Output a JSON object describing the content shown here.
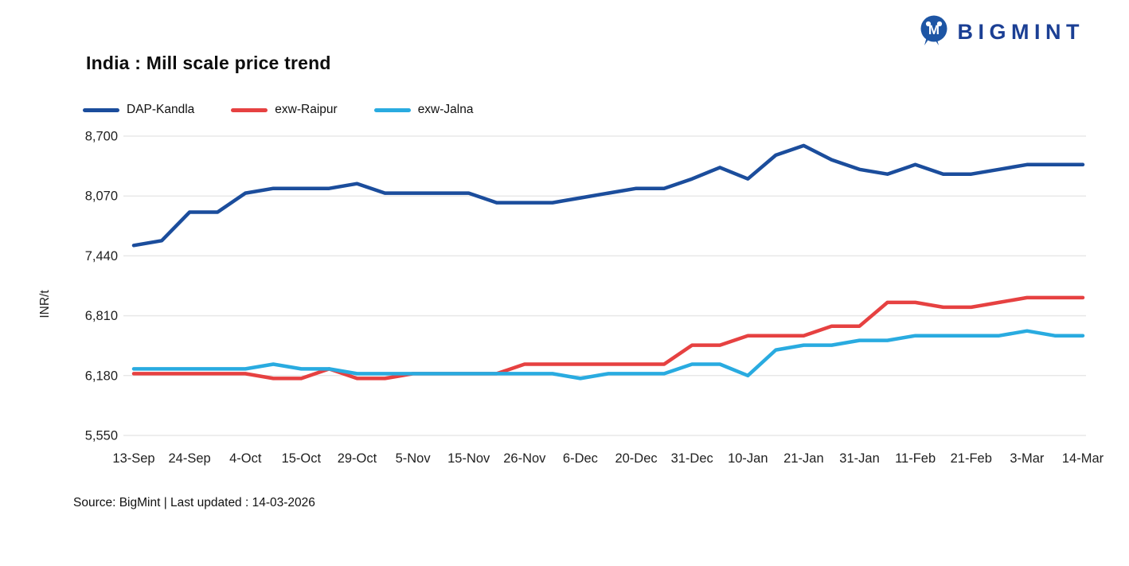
{
  "header": {
    "title": "India : Mill scale price trend",
    "brand": "BIGMINT"
  },
  "footer": {
    "source_line": "Source: BigMint | Last updated : 14-03-2026"
  },
  "colors": {
    "brand_blue": "#1b3f94",
    "logo_disc_blue": "#1d55a4",
    "dap_kandla": "#1b4d9c",
    "exw_raipur": "#e64141",
    "exw_jalna": "#29abe0",
    "gridline": "#e8e8e8",
    "axis_text": "#1f1f1f"
  },
  "chart_data": {
    "type": "line",
    "title": "India : Mill scale price trend",
    "xlabel": "",
    "ylabel": "INR/t",
    "ylim": [
      5550,
      8700
    ],
    "yticks": [
      8700,
      8070,
      7440,
      6810,
      6180,
      5550
    ],
    "grid": true,
    "legend_position": "top-left",
    "categories": [
      "13-Sep",
      "24-Sep",
      "4-Oct",
      "15-Oct",
      "29-Oct",
      "5-Nov",
      "15-Nov",
      "26-Nov",
      "6-Dec",
      "20-Dec",
      "31-Dec",
      "10-Jan",
      "21-Jan",
      "31-Jan",
      "11-Feb",
      "21-Feb",
      "3-Mar",
      "14-Mar"
    ],
    "points_per_label_interval": 2,
    "series": [
      {
        "name": "DAP-Kandla",
        "color": "#1b4d9c",
        "values": [
          7550,
          7600,
          7900,
          7900,
          8100,
          8150,
          8150,
          8150,
          8200,
          8100,
          8100,
          8100,
          8100,
          8000,
          8000,
          8000,
          8050,
          8100,
          8150,
          8150,
          8250,
          8370,
          8250,
          8500,
          8600,
          8450,
          8350,
          8300,
          8400,
          8300,
          8300,
          8350,
          8400,
          8400,
          8400
        ]
      },
      {
        "name": "exw-Raipur",
        "color": "#e64141",
        "values": [
          6200,
          6200,
          6200,
          6200,
          6200,
          6150,
          6150,
          6250,
          6150,
          6150,
          6200,
          6200,
          6200,
          6200,
          6300,
          6300,
          6300,
          6300,
          6300,
          6300,
          6500,
          6500,
          6600,
          6600,
          6600,
          6700,
          6700,
          6950,
          6950,
          6900,
          6900,
          6950,
          7000,
          7000,
          7000
        ]
      },
      {
        "name": "exw-Jalna",
        "color": "#29abe0",
        "values": [
          6250,
          6250,
          6250,
          6250,
          6250,
          6300,
          6250,
          6250,
          6200,
          6200,
          6200,
          6200,
          6200,
          6200,
          6200,
          6200,
          6150,
          6200,
          6200,
          6200,
          6300,
          6300,
          6180,
          6450,
          6500,
          6500,
          6550,
          6550,
          6600,
          6600,
          6600,
          6600,
          6650,
          6600,
          6600
        ]
      }
    ]
  }
}
